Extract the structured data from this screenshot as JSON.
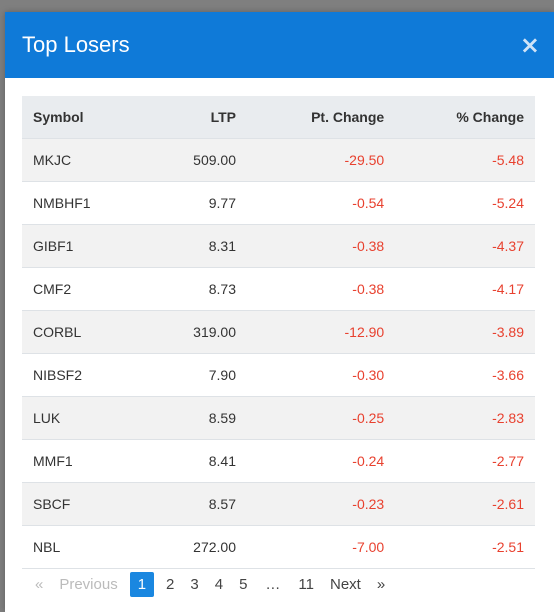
{
  "modal": {
    "title": "Top Losers",
    "close_label": "×"
  },
  "table": {
    "headers": {
      "symbol": "Symbol",
      "ltp": "LTP",
      "pt_change": "Pt. Change",
      "pct_change": "% Change"
    },
    "rows": [
      {
        "symbol": "MKJC",
        "ltp": "509.00",
        "pt_change": "-29.50",
        "pct_change": "-5.48"
      },
      {
        "symbol": "NMBHF1",
        "ltp": "9.77",
        "pt_change": "-0.54",
        "pct_change": "-5.24"
      },
      {
        "symbol": "GIBF1",
        "ltp": "8.31",
        "pt_change": "-0.38",
        "pct_change": "-4.37"
      },
      {
        "symbol": "CMF2",
        "ltp": "8.73",
        "pt_change": "-0.38",
        "pct_change": "-4.17"
      },
      {
        "symbol": "CORBL",
        "ltp": "319.00",
        "pt_change": "-12.90",
        "pct_change": "-3.89"
      },
      {
        "symbol": "NIBSF2",
        "ltp": "7.90",
        "pt_change": "-0.30",
        "pct_change": "-3.66"
      },
      {
        "symbol": "LUK",
        "ltp": "8.59",
        "pt_change": "-0.25",
        "pct_change": "-2.83"
      },
      {
        "symbol": "MMF1",
        "ltp": "8.41",
        "pt_change": "-0.24",
        "pct_change": "-2.77"
      },
      {
        "symbol": "SBCF",
        "ltp": "8.57",
        "pt_change": "-0.23",
        "pct_change": "-2.61"
      },
      {
        "symbol": "NBL",
        "ltp": "272.00",
        "pt_change": "-7.00",
        "pct_change": "-2.51"
      }
    ]
  },
  "pagination": {
    "first_marker": "«",
    "previous": "Previous",
    "pages": [
      "1",
      "2",
      "3",
      "4",
      "5"
    ],
    "ellipsis": "…",
    "last_page": "11",
    "next": "Next",
    "last_marker": "»",
    "current": "1"
  },
  "colors": {
    "header_bg": "#0f7ad8",
    "negative": "#e8412f",
    "active_page": "#1a87e0"
  }
}
